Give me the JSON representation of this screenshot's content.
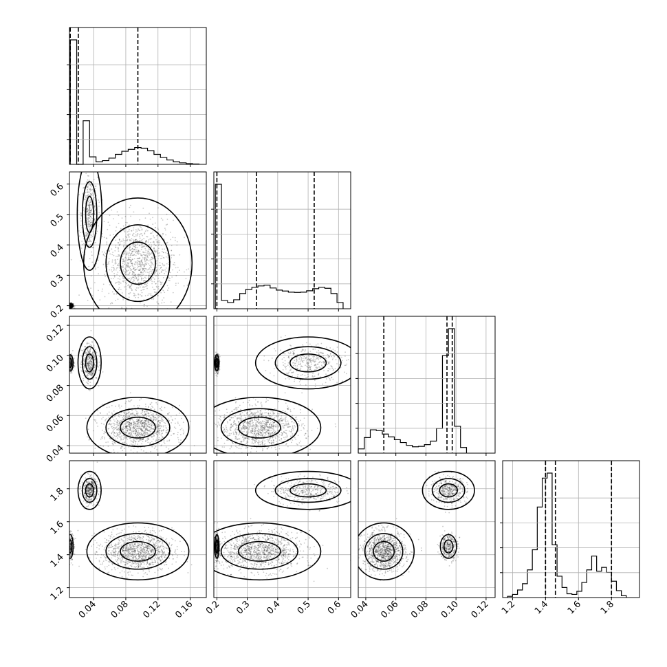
{
  "chart_data": {
    "type": "corner",
    "grid": true,
    "colors": {
      "mark": "#000000",
      "cloud": "#000000",
      "gridline": "#b0b0b0"
    },
    "params": [
      {
        "range": [
          0.01,
          0.18
        ],
        "ticks": [
          0.04,
          0.08,
          0.12,
          0.16
        ],
        "tick_labels": [
          "0.04",
          "0.08",
          "0.12",
          "0.16"
        ],
        "hist_edges": [
          0.011,
          0.019,
          0.027,
          0.035,
          0.043,
          0.051,
          0.059,
          0.067,
          0.075,
          0.083,
          0.091,
          0.099,
          0.107,
          0.115,
          0.123,
          0.131,
          0.139,
          0.147,
          0.155,
          0.163,
          0.171
        ],
        "hist_counts": [
          1000,
          0,
          350,
          60,
          20,
          30,
          50,
          80,
          105,
          120,
          135,
          130,
          110,
          80,
          55,
          35,
          20,
          12,
          6,
          3
        ],
        "quantiles": [
          0.011,
          0.021,
          0.095
        ]
      },
      {
        "range": [
          0.19,
          0.64
        ],
        "ticks": [
          0.2,
          0.3,
          0.4,
          0.5,
          0.6
        ],
        "tick_labels": [
          "0.2",
          "0.3",
          "0.4",
          "0.5",
          "0.6"
        ],
        "hist_edges": [
          0.195,
          0.215,
          0.235,
          0.255,
          0.275,
          0.295,
          0.315,
          0.335,
          0.355,
          0.375,
          0.395,
          0.415,
          0.435,
          0.455,
          0.475,
          0.495,
          0.515,
          0.535,
          0.555,
          0.575,
          0.595,
          0.615
        ],
        "hist_counts": [
          900,
          60,
          45,
          65,
          110,
          140,
          155,
          165,
          170,
          150,
          135,
          128,
          120,
          118,
          120,
          130,
          145,
          155,
          148,
          110,
          45
        ],
        "quantiles": [
          0.2,
          0.33,
          0.52
        ]
      },
      {
        "range": [
          0.035,
          0.126
        ],
        "ticks": [
          0.04,
          0.06,
          0.08,
          0.1,
          0.12
        ],
        "tick_labels": [
          "0.04",
          "0.06",
          "0.08",
          "0.10",
          "0.12"
        ],
        "hist_edges": [
          0.035,
          0.039,
          0.043,
          0.047,
          0.051,
          0.055,
          0.059,
          0.063,
          0.067,
          0.071,
          0.075,
          0.079,
          0.083,
          0.087,
          0.091,
          0.095,
          0.099,
          0.103,
          0.107
        ],
        "hist_counts": [
          30,
          110,
          165,
          160,
          135,
          115,
          95,
          75,
          55,
          45,
          48,
          60,
          85,
          175,
          690,
          880,
          190,
          40
        ],
        "quantiles": [
          0.052,
          0.094,
          0.0975
        ]
      },
      {
        "range": [
          1.14,
          1.97
        ],
        "ticks": [
          1.2,
          1.4,
          1.6,
          1.8
        ],
        "tick_labels": [
          "1.2",
          "1.4",
          "1.6",
          "1.8"
        ],
        "hist_edges": [
          1.17,
          1.2,
          1.23,
          1.26,
          1.29,
          1.32,
          1.35,
          1.38,
          1.41,
          1.44,
          1.47,
          1.5,
          1.53,
          1.56,
          1.59,
          1.62,
          1.65,
          1.68,
          1.71,
          1.74,
          1.77,
          1.8,
          1.83,
          1.86,
          1.89
        ],
        "hist_counts": [
          10,
          25,
          60,
          110,
          220,
          380,
          720,
          950,
          990,
          420,
          170,
          80,
          30,
          25,
          50,
          120,
          220,
          330,
          210,
          240,
          200,
          130,
          55,
          15
        ],
        "quantiles": [
          1.4,
          1.46,
          1.8
        ]
      }
    ],
    "modes": [
      {
        "w": 0.18,
        "mean": [
          0.011,
          0.2,
          0.095,
          1.45
        ],
        "sd": [
          0.002,
          0.004,
          0.003,
          0.04
        ]
      },
      {
        "w": 0.22,
        "mean": [
          0.035,
          0.5,
          0.095,
          1.79
        ],
        "sd": [
          0.005,
          0.06,
          0.006,
          0.04
        ]
      },
      {
        "w": 0.6,
        "mean": [
          0.095,
          0.34,
          0.052,
          1.42
        ],
        "sd": [
          0.022,
          0.07,
          0.007,
          0.06
        ]
      }
    ]
  }
}
